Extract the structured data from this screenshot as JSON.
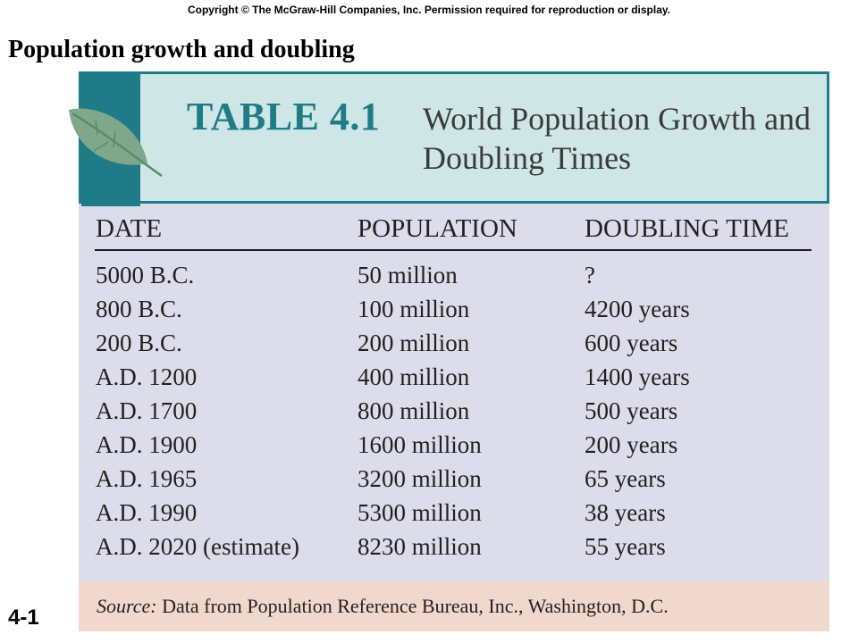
{
  "copyright": "Copyright © The McGraw-Hill Companies, Inc. Permission required for reproduction or display.",
  "slide_title": "Population growth and doubling",
  "slide_number": "4-1",
  "table": {
    "label": "TABLE 4.1",
    "caption": "World Population Growth and Doubling Times",
    "columns": [
      "DATE",
      "POPULATION",
      "DOUBLING TIME"
    ],
    "rows": [
      {
        "date": "5000 B.C.",
        "population": "50 million",
        "doubling_time": "?"
      },
      {
        "date": "800 B.C.",
        "population": "100 million",
        "doubling_time": "4200 years"
      },
      {
        "date": "200 B.C.",
        "population": "200 million",
        "doubling_time": "600 years"
      },
      {
        "date": "A.D. 1200",
        "population": "400 million",
        "doubling_time": "1400 years"
      },
      {
        "date": "A.D. 1700",
        "population": "800 million",
        "doubling_time": "500 years"
      },
      {
        "date": "A.D. 1900",
        "population": "1600 million",
        "doubling_time": "200 years"
      },
      {
        "date": "A.D. 1965",
        "population": "3200 million",
        "doubling_time": "65 years"
      },
      {
        "date": "A.D. 1990",
        "population": "5300 million",
        "doubling_time": "38 years"
      },
      {
        "date": "A.D. 2020 (estimate)",
        "population": "8230 million",
        "doubling_time": "55 years"
      }
    ],
    "source_label": "Source:",
    "source_text": "Data from Population Reference Bureau, Inc., Washington, D.C."
  },
  "colors": {
    "teal": "#1f7c86",
    "header_bg": "#cfe6e7",
    "body_bg": "#dcdcea",
    "source_bg": "#f1d8cc",
    "leaf": "#7fa88a"
  },
  "icons": {
    "header_leaf": "leaf-icon"
  }
}
